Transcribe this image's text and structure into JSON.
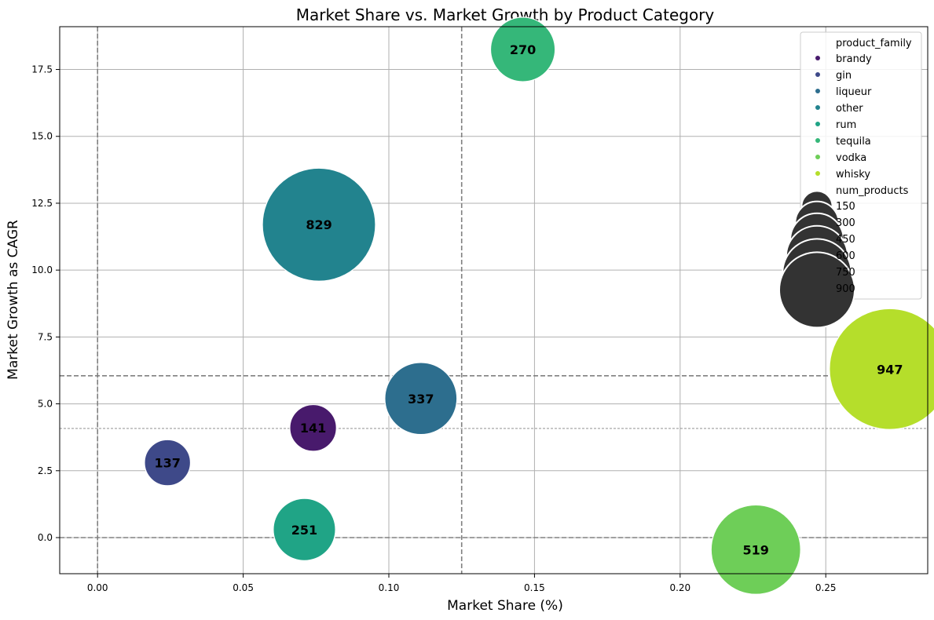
{
  "chart_data": {
    "type": "scatter",
    "title": "Market Share vs. Market Growth by Product Category",
    "xlabel": "Market Share (%)",
    "ylabel": "Market Growth as CAGR",
    "xlim": [
      -0.013,
      0.285
    ],
    "ylim": [
      -1.35,
      19.1
    ],
    "x_ticks": [
      0.0,
      0.05,
      0.1,
      0.15,
      0.2,
      0.25
    ],
    "x_tick_labels": [
      "0.00",
      "0.05",
      "0.10",
      "0.15",
      "0.20",
      "0.25"
    ],
    "y_ticks": [
      0.0,
      2.5,
      5.0,
      7.5,
      10.0,
      12.5,
      15.0,
      17.5
    ],
    "y_tick_labels": [
      "0.0",
      "2.5",
      "5.0",
      "7.5",
      "10.0",
      "12.5",
      "15.0",
      "17.5"
    ],
    "grid": true,
    "reference_lines": {
      "vertical_dashed": [
        0.0,
        0.125
      ],
      "horizontal_dashed": [
        0.0,
        6.05
      ],
      "horizontal_mean_dashed": [
        4.08
      ]
    },
    "series": [
      {
        "name": "brandy",
        "x": 0.074,
        "y": 4.1,
        "num_products": 141,
        "label": "141",
        "color": "#481a6c"
      },
      {
        "name": "gin",
        "x": 0.024,
        "y": 2.8,
        "num_products": 137,
        "label": "137",
        "color": "#3e4989"
      },
      {
        "name": "liqueur",
        "x": 0.111,
        "y": 5.2,
        "num_products": 337,
        "label": "337",
        "color": "#2d6e8e"
      },
      {
        "name": "other",
        "x": 0.076,
        "y": 11.7,
        "num_products": 829,
        "label": "829",
        "color": "#22838e"
      },
      {
        "name": "rum",
        "x": 0.071,
        "y": 0.3,
        "num_products": 251,
        "label": "251",
        "color": "#20a486"
      },
      {
        "name": "tequila",
        "x": 0.146,
        "y": 18.25,
        "num_products": 270,
        "label": "270",
        "color": "#35b779"
      },
      {
        "name": "vodka",
        "x": 0.226,
        "y": -0.45,
        "num_products": 519,
        "label": "519",
        "color": "#6ece58"
      },
      {
        "name": "whisky",
        "x": 0.272,
        "y": 6.3,
        "num_products": 947,
        "label": "947",
        "color": "#b5de2b"
      }
    ],
    "legend": {
      "placement": "top-right",
      "hue_title": "product_family",
      "size_title": "num_products",
      "size_entries": [
        {
          "value": 150,
          "label": "150"
        },
        {
          "value": 300,
          "label": "300"
        },
        {
          "value": 450,
          "label": "450"
        },
        {
          "value": 600,
          "label": "600"
        },
        {
          "value": 750,
          "label": "750"
        },
        {
          "value": 900,
          "label": "900"
        }
      ],
      "size_entry_color": "#333333"
    }
  }
}
